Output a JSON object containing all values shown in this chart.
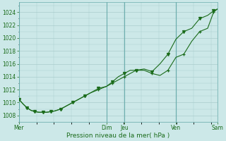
{
  "xlabel": "Pression niveau de la mer( hPa )",
  "bg_color": "#cce8e8",
  "plot_bg_color": "#cce8e8",
  "grid_color": "#aacccc",
  "line_color": "#1a6b1a",
  "ylim": [
    1007.0,
    1025.5
  ],
  "yticks": [
    1008,
    1010,
    1012,
    1014,
    1016,
    1018,
    1020,
    1022,
    1024
  ],
  "day_labels": [
    "Mer",
    "Dim",
    "Jeu",
    "Ven",
    "Sam"
  ],
  "day_positions": [
    0.0,
    0.44,
    0.53,
    0.79,
    1.0
  ],
  "series1_x": [
    0.0,
    0.02,
    0.04,
    0.06,
    0.08,
    0.1,
    0.12,
    0.14,
    0.16,
    0.18,
    0.21,
    0.24,
    0.27,
    0.3,
    0.33,
    0.36,
    0.4,
    0.44,
    0.47,
    0.5,
    0.53,
    0.56,
    0.59,
    0.63,
    0.67,
    0.71,
    0.75,
    0.79,
    0.83,
    0.87,
    0.91,
    0.95,
    0.98,
    1.0
  ],
  "series1_y": [
    1010.5,
    1009.8,
    1009.2,
    1008.8,
    1008.6,
    1008.5,
    1008.5,
    1008.5,
    1008.6,
    1008.7,
    1009.0,
    1009.5,
    1010.0,
    1010.5,
    1011.0,
    1011.5,
    1012.0,
    1012.5,
    1013.0,
    1013.5,
    1014.0,
    1014.5,
    1015.0,
    1015.0,
    1014.5,
    1014.2,
    1015.0,
    1017.0,
    1017.5,
    1019.5,
    1021.0,
    1021.5,
    1024.0,
    1024.5
  ],
  "series2_x": [
    0.0,
    0.02,
    0.04,
    0.06,
    0.08,
    0.1,
    0.12,
    0.14,
    0.16,
    0.18,
    0.21,
    0.24,
    0.27,
    0.3,
    0.33,
    0.36,
    0.4,
    0.44,
    0.47,
    0.5,
    0.53,
    0.56,
    0.59,
    0.63,
    0.67,
    0.71,
    0.75,
    0.79,
    0.83,
    0.87,
    0.91,
    0.95,
    0.98,
    1.0
  ],
  "series2_y": [
    1010.5,
    1009.8,
    1009.2,
    1008.8,
    1008.6,
    1008.5,
    1008.5,
    1008.5,
    1008.6,
    1008.7,
    1009.0,
    1009.5,
    1010.0,
    1010.5,
    1011.0,
    1011.5,
    1012.2,
    1012.5,
    1013.2,
    1014.0,
    1014.5,
    1015.0,
    1015.0,
    1015.2,
    1014.8,
    1016.0,
    1017.5,
    1019.8,
    1021.0,
    1021.5,
    1023.0,
    1023.5,
    1024.2,
    1024.5
  ]
}
